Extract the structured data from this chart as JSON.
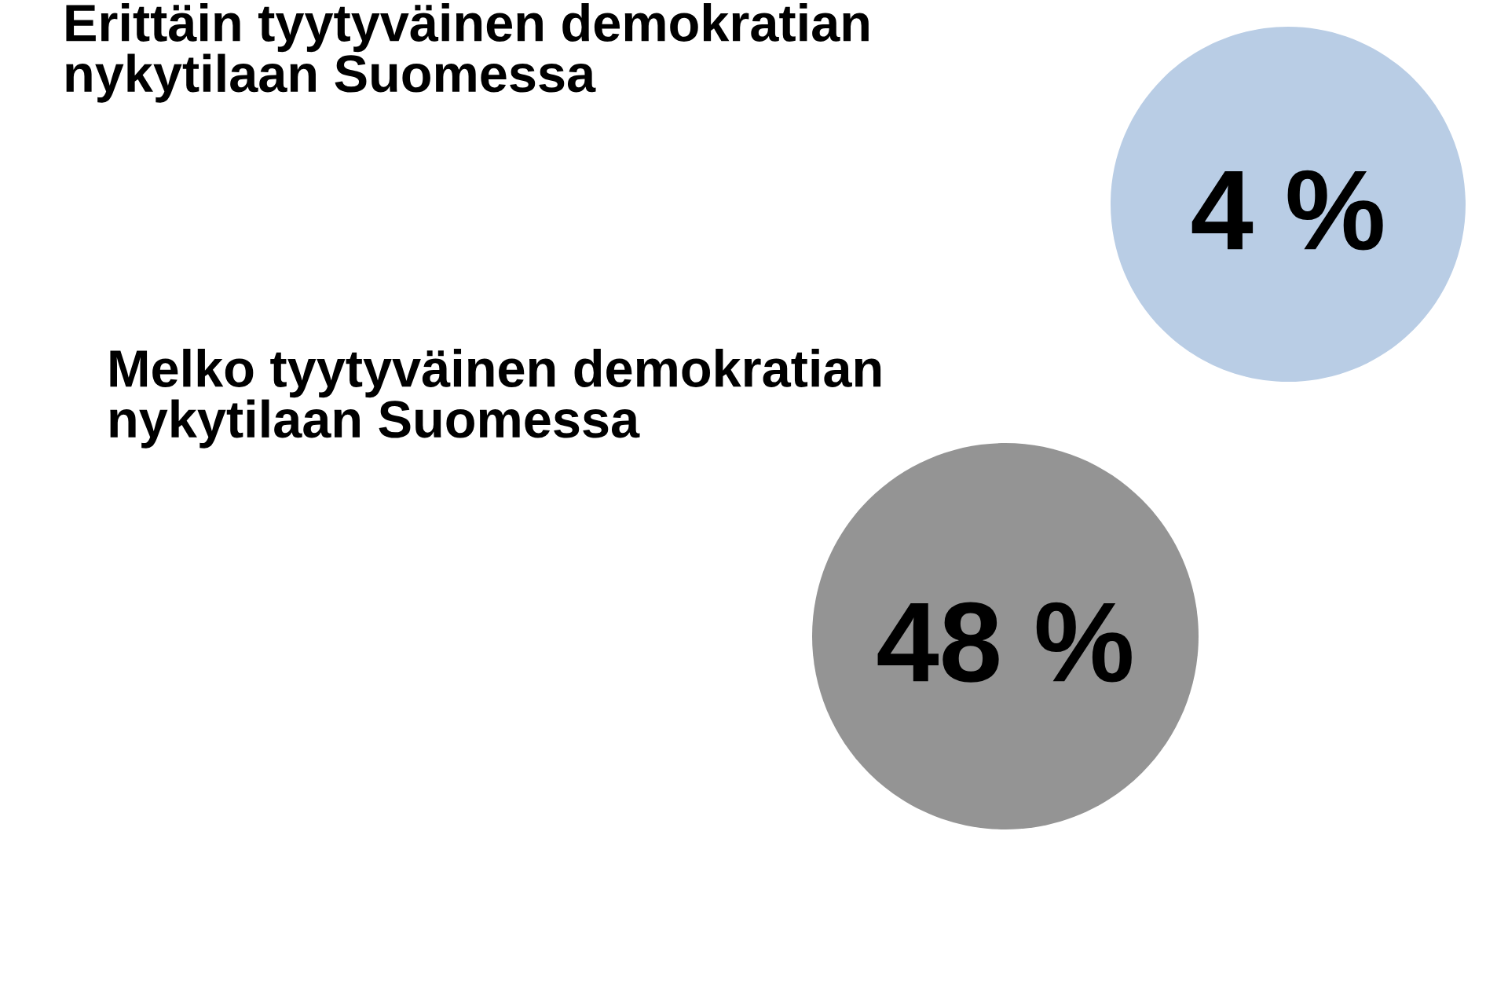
{
  "chart_data": {
    "type": "other",
    "categories": [
      "Erittäin tyytyväinen demokratian\nnykytilaan Suomessa",
      "Melko tyytyväinen demokratian\nnykytilaan Suomessa"
    ],
    "values": [
      4,
      48
    ],
    "value_labels": [
      "4 %",
      "48 %"
    ],
    "colors": [
      "#b9cde5",
      "#949494"
    ]
  }
}
